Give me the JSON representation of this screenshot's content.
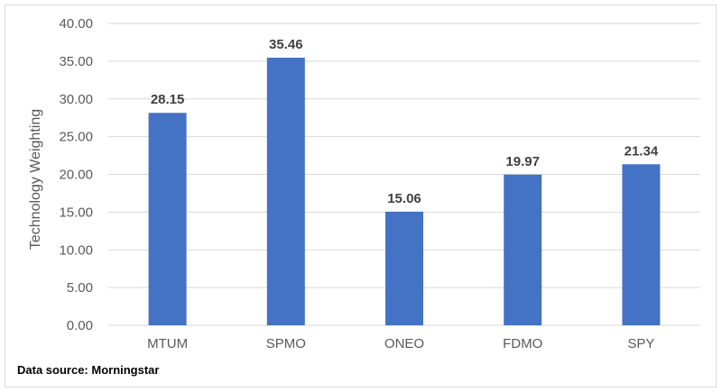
{
  "chart_data": {
    "type": "bar",
    "categories": [
      "MTUM",
      "SPMO",
      "ONEO",
      "FDMO",
      "SPY"
    ],
    "values": [
      28.15,
      35.46,
      15.06,
      19.97,
      21.34
    ],
    "data_labels": [
      "28.15",
      "35.46",
      "15.06",
      "19.97",
      "21.34"
    ],
    "ylabel": "Technology Weighting",
    "ylim": [
      0,
      40
    ],
    "yticks": [
      "0.00",
      "5.00",
      "10.00",
      "15.00",
      "20.00",
      "25.00",
      "30.00",
      "35.00",
      "40.00"
    ],
    "grid": true,
    "bar_color": "#4472c4",
    "grid_color": "#d9d9d9"
  },
  "footer": {
    "source": "Data source: Morningstar"
  }
}
